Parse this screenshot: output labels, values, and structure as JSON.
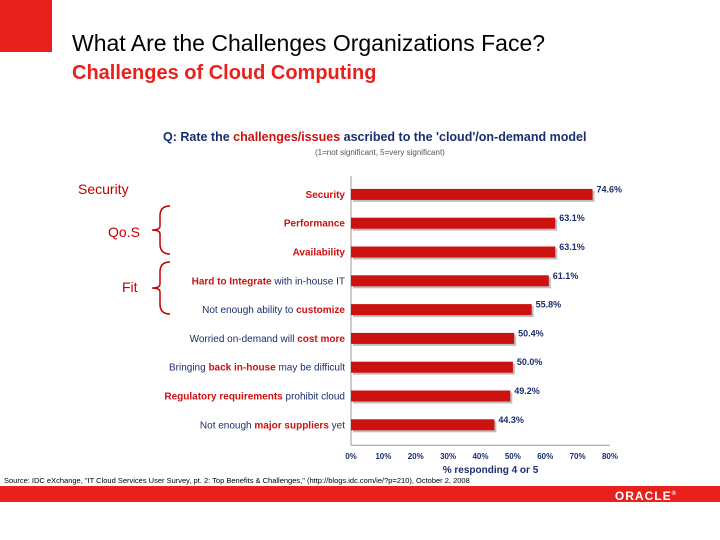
{
  "slide": {
    "title": "What Are the Challenges Organizations Face?",
    "subtitle": "Challenges of Cloud Computing",
    "source": "Source: IDC eXchange, \"IT Cloud Services User Survey, pt. 2: Top Benefits & Challenges,\" (http://blogs.idc.com/ie/?p=210), October 2, 2008",
    "logo_text": "ORACLE",
    "logo_mark": "®",
    "accent_color": "#e8211c",
    "side_labels": [
      {
        "text": "Security",
        "group": "security"
      },
      {
        "text": "Qo.S",
        "group": "qos"
      },
      {
        "text": "Fit",
        "group": "fit"
      }
    ]
  },
  "chart_data": {
    "type": "bar",
    "orientation": "horizontal",
    "question_prefix": "Q: Rate the ",
    "question_highlight": "challenges/issues",
    "question_suffix": " ascribed to the 'cloud'/on-demand model",
    "scale_note": "(1=not significant, 5=very significant)",
    "categories": [
      {
        "plain_before": "",
        "highlight": "Security",
        "plain_after": ""
      },
      {
        "plain_before": "",
        "highlight": "Performance",
        "plain_after": ""
      },
      {
        "plain_before": "",
        "highlight": "Availability",
        "plain_after": ""
      },
      {
        "plain_before": "",
        "highlight": "Hard to Integrate",
        "plain_after": " with in-house IT"
      },
      {
        "plain_before": "Not enough ability to ",
        "highlight": "customize",
        "plain_after": ""
      },
      {
        "plain_before": "Worried on-demand will ",
        "highlight": "cost more",
        "plain_after": ""
      },
      {
        "plain_before": "Bringing ",
        "highlight": "back in-house",
        "plain_after": " may be difficult"
      },
      {
        "plain_before": "",
        "highlight": "Regulatory requirements",
        "plain_after": " prohibit cloud"
      },
      {
        "plain_before": "Not enough ",
        "highlight": "major suppliers",
        "plain_after": " yet"
      }
    ],
    "values": [
      74.6,
      63.1,
      63.1,
      61.1,
      55.8,
      50.4,
      50.0,
      49.2,
      44.3
    ],
    "value_labels": [
      "74.6%",
      "63.1%",
      "63.1%",
      "61.1%",
      "55.8%",
      "50.4%",
      "50.0%",
      "49.2%",
      "44.3%"
    ],
    "xticks": [
      "0%",
      "10%",
      "20%",
      "30%",
      "40%",
      "50%",
      "60%",
      "70%",
      "80%"
    ],
    "xlim": [
      0,
      80
    ],
    "xlabel_line1": "% responding 4 or 5",
    "xlabel_line2": "",
    "bar_color": "#cc1111",
    "highlight_color": "#cc1111",
    "grid": false,
    "legend": "none"
  }
}
